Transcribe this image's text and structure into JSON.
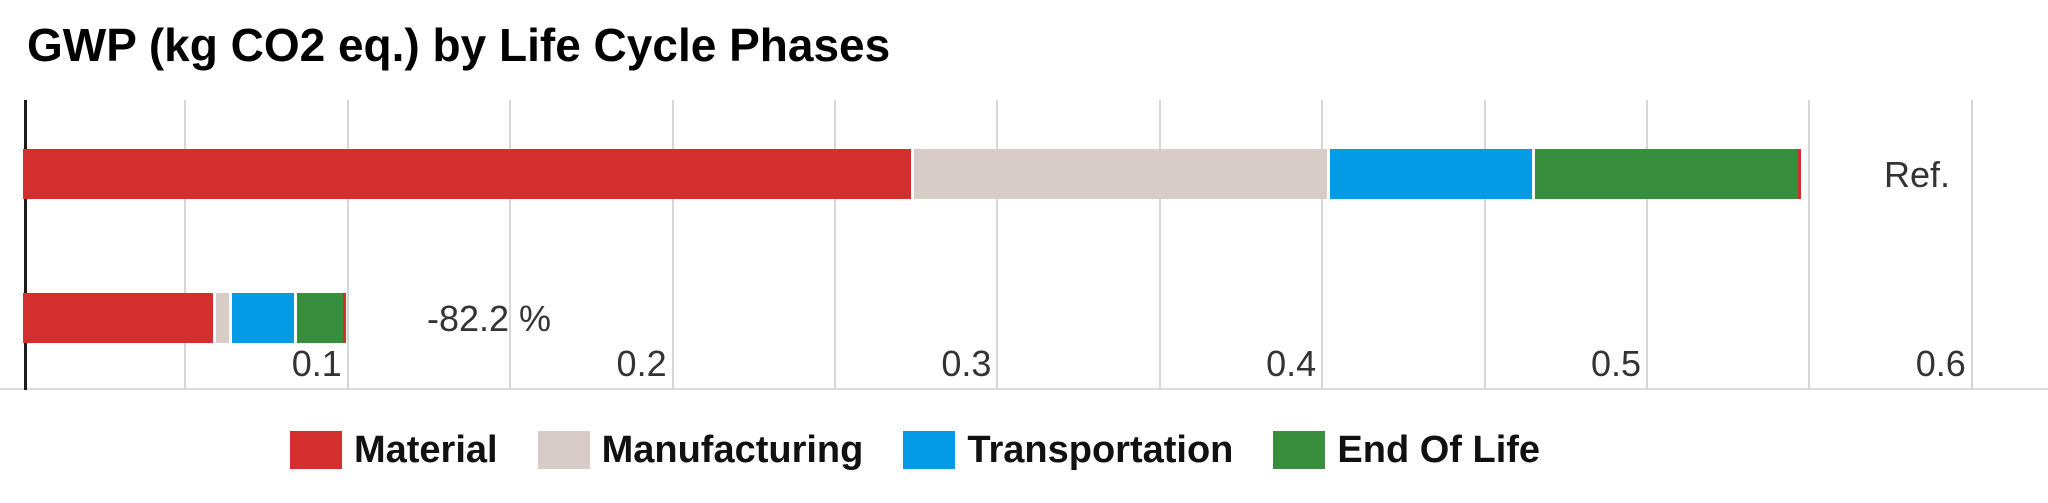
{
  "page": {
    "background": "#ffffff"
  },
  "chart_data": {
    "type": "bar",
    "orientation": "horizontal",
    "stacked": true,
    "title": "GWP (kg CO2 eq.) by Life Cycle Phases",
    "unit": "kg CO2 eq.",
    "bar_labels": [
      "Ref.",
      "-82.2 %"
    ],
    "series": [
      {
        "name": "Material",
        "color": "#d32f2f",
        "values": [
          0.274,
          0.059
        ]
      },
      {
        "name": "Manufacturing",
        "color": "#d7ccc8",
        "values": [
          0.128,
          0.005
        ]
      },
      {
        "name": "Transportation",
        "color": "#039be5",
        "values": [
          0.063,
          0.02
        ]
      },
      {
        "name": "End Of Life",
        "color": "#388e3c",
        "values": [
          0.082,
          0.015
        ]
      }
    ],
    "totals": [
      0.547,
      0.099
    ],
    "x_ticks": [
      "0.1",
      "0.2",
      "0.3",
      "0.4",
      "0.5",
      "0.6"
    ],
    "x_tick_values": [
      0.1,
      0.2,
      0.3,
      0.4,
      0.5,
      0.6
    ],
    "gridline_step": 0.05,
    "xlim": [
      0,
      0.623
    ],
    "grid": true,
    "legend_position": "bottom",
    "colors": {
      "gridline": "#d6d6d6",
      "axis": "#1c1c1c",
      "tick_label": "#333333",
      "annotation": "#333333",
      "title": "#000000",
      "segment_separator": "#ffffff",
      "bar_end_line": "#d32f2f",
      "background": "#ffffff"
    }
  }
}
